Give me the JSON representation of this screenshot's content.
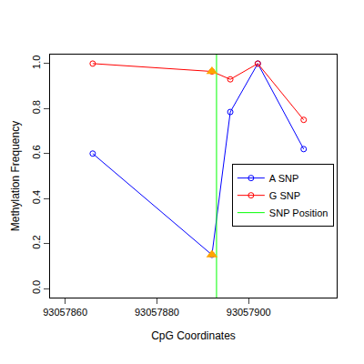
{
  "chart_data": {
    "type": "line",
    "x_label": "CpG Coordinates",
    "y_label": "Methylation Frequency",
    "x": [
      93057866,
      93057892,
      93057896,
      93057902,
      93057912
    ],
    "xlim": [
      93057856.7,
      93057919.2
    ],
    "xticks": [
      93057860,
      93057880,
      93057900
    ],
    "ylim": [
      -0.04,
      1.04
    ],
    "yticks": [
      {
        "value": 0,
        "label": "0.0"
      },
      {
        "value": 0.2,
        "label": "0.2"
      },
      {
        "value": 0.4,
        "label": "0.4"
      },
      {
        "value": 0.6,
        "label": "0.6"
      },
      {
        "value": 0.8,
        "label": "0.8"
      },
      {
        "value": 1,
        "label": "1.0"
      }
    ],
    "legend": "right",
    "grid": false,
    "series": [
      {
        "name": "A SNP",
        "color": "#0000ff",
        "type": "line",
        "marker": "open circle",
        "values": [
          0.6,
          0.15,
          0.785,
          1.0,
          0.62
        ]
      },
      {
        "name": "G SNP",
        "color": "#ff0000",
        "type": "line",
        "marker": "open circle",
        "values": [
          1.0,
          0.965,
          0.93,
          1.0,
          0.75
        ]
      },
      {
        "name": "SNP Position",
        "color": "#00ff00",
        "type": "vline",
        "x": 93057893
      },
      {
        "type": "scatter",
        "color": "#ffa500",
        "marker": "triangle",
        "values": [
          null,
          0.15,
          null,
          null,
          null
        ]
      },
      {
        "type": "scatter",
        "color": "#ffa500",
        "marker": "triangle",
        "values": [
          null,
          0.965,
          null,
          null,
          null
        ]
      }
    ]
  }
}
